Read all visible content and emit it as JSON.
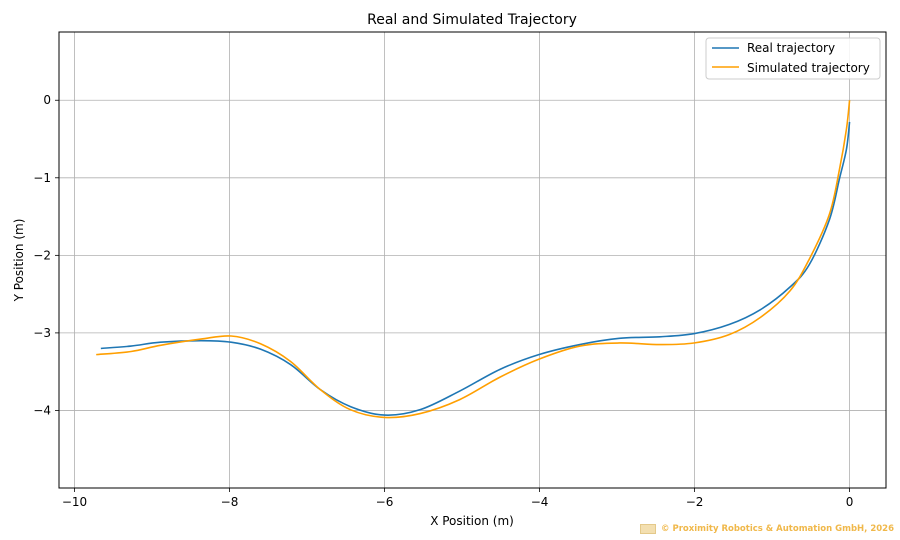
{
  "chart_data": {
    "type": "line",
    "title": "Real and Simulated Trajectory",
    "xlabel": "X Position (m)",
    "ylabel": "Y Position (m)",
    "xlim": [
      -10.2,
      0.47
    ],
    "ylim": [
      -5.0,
      0.88
    ],
    "xticks": [
      -10,
      -8,
      -6,
      -4,
      -2,
      0
    ],
    "yticks": [
      0,
      -1,
      -2,
      -3,
      -4
    ],
    "xtick_labels": [
      "−10",
      "−8",
      "−6",
      "−4",
      "−2",
      "0"
    ],
    "ytick_labels": [
      "0",
      "−1",
      "−2",
      "−3",
      "−4"
    ],
    "grid": true,
    "legend_position": "upper right",
    "series": [
      {
        "name": "Real trajectory",
        "color": "#1f77b4",
        "x": [
          -9.66,
          -9.27,
          -8.89,
          -8.37,
          -7.98,
          -7.6,
          -7.21,
          -6.83,
          -6.44,
          -6.0,
          -5.54,
          -5.03,
          -4.51,
          -4.01,
          -3.48,
          -2.97,
          -2.45,
          -2.01,
          -1.55,
          -1.15,
          -0.77,
          -0.52,
          -0.26,
          -0.13,
          -0.04,
          0.0
        ],
        "y": [
          -3.2,
          -3.17,
          -3.12,
          -3.1,
          -3.12,
          -3.21,
          -3.41,
          -3.73,
          -3.95,
          -4.06,
          -3.99,
          -3.75,
          -3.47,
          -3.28,
          -3.15,
          -3.07,
          -3.05,
          -3.01,
          -2.89,
          -2.7,
          -2.41,
          -2.12,
          -1.54,
          -1.01,
          -0.63,
          -0.28
        ]
      },
      {
        "name": "Simulated trajectory",
        "color": "#ff9f00",
        "x": [
          -9.72,
          -9.27,
          -8.89,
          -8.37,
          -7.98,
          -7.6,
          -7.21,
          -6.83,
          -6.44,
          -6.0,
          -5.54,
          -5.03,
          -4.51,
          -4.01,
          -3.48,
          -2.97,
          -2.45,
          -2.01,
          -1.55,
          -1.15,
          -0.77,
          -0.52,
          -0.26,
          -0.13,
          -0.04,
          0.0
        ],
        "y": [
          -3.28,
          -3.24,
          -3.16,
          -3.08,
          -3.04,
          -3.14,
          -3.37,
          -3.73,
          -3.99,
          -4.09,
          -4.04,
          -3.86,
          -3.57,
          -3.34,
          -3.17,
          -3.13,
          -3.15,
          -3.13,
          -3.02,
          -2.8,
          -2.46,
          -2.05,
          -1.47,
          -0.89,
          -0.37,
          0.0
        ]
      }
    ]
  },
  "legend": {
    "items": [
      {
        "label": "Real trajectory",
        "color": "#1f77b4"
      },
      {
        "label": "Simulated trajectory",
        "color": "#ff9f00"
      }
    ]
  },
  "watermark": {
    "text": "© Proximity Robotics & Automation GmbH, 2026"
  }
}
